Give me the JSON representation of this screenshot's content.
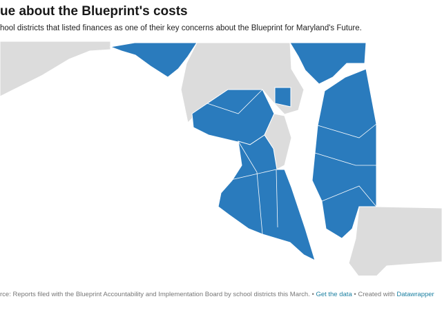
{
  "header": {
    "title": "ue about the Blueprint's costs",
    "subtitle": "hool districts that listed finances as one of their key concerns about the Blueprint for Maryland's Future."
  },
  "footer": {
    "source": "rce: Reports filed with the Blueprint Accountability and Implementation Board by school districts this March.",
    "separator": "•",
    "get_data": "Get the data",
    "created_with": "Created with",
    "credit": "Datawrapper"
  }
}
